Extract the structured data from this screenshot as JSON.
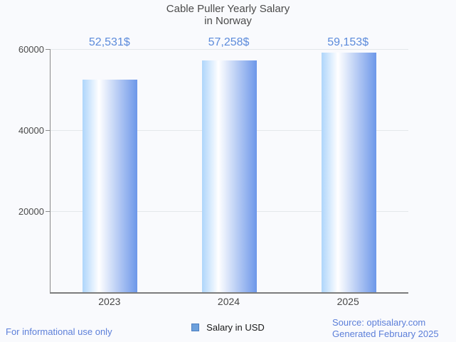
{
  "header": {
    "title_line1": "Cable Puller Yearly Salary",
    "title_line2": "in Norway"
  },
  "chart_data": {
    "type": "bar",
    "title": "Cable Puller Yearly Salary in Norway",
    "categories": [
      "2023",
      "2024",
      "2025"
    ],
    "series": [
      {
        "name": "Salary in USD",
        "values": [
          52531,
          57258,
          59153
        ]
      }
    ],
    "value_labels": [
      "52,531$",
      "57,258$",
      "59,153$"
    ],
    "xlabel": "",
    "ylabel": "",
    "ylim": [
      0,
      60000
    ],
    "yticks": [
      20000,
      40000,
      60000
    ],
    "ytick_labels": [
      "20000",
      "40000",
      "60000"
    ],
    "grid": true,
    "legend_position": "bottom",
    "bar_gradient": [
      "#aed5fb",
      "#ffffff",
      "#6d97e9"
    ],
    "value_label_color": "#5c8bdb"
  },
  "legend": {
    "label": "Salary in USD",
    "swatch_fill": "#6ca0dc",
    "swatch_border": "#4d7fc0"
  },
  "footer": {
    "left_note": "For informational use only",
    "source_line1": "Source: optisalary.com",
    "source_line2": "Generated February 2025"
  },
  "colors": {
    "background": "#f9fafd",
    "title_text": "#4b4b4b",
    "axis_text": "#4a4a4a",
    "gridline": "#e4e7ea",
    "axis_line": "#8a8a8a",
    "baseline": "#7c7c7c",
    "accent_blue": "#5c8bdb",
    "footer_blue": "#5c7fd9"
  }
}
